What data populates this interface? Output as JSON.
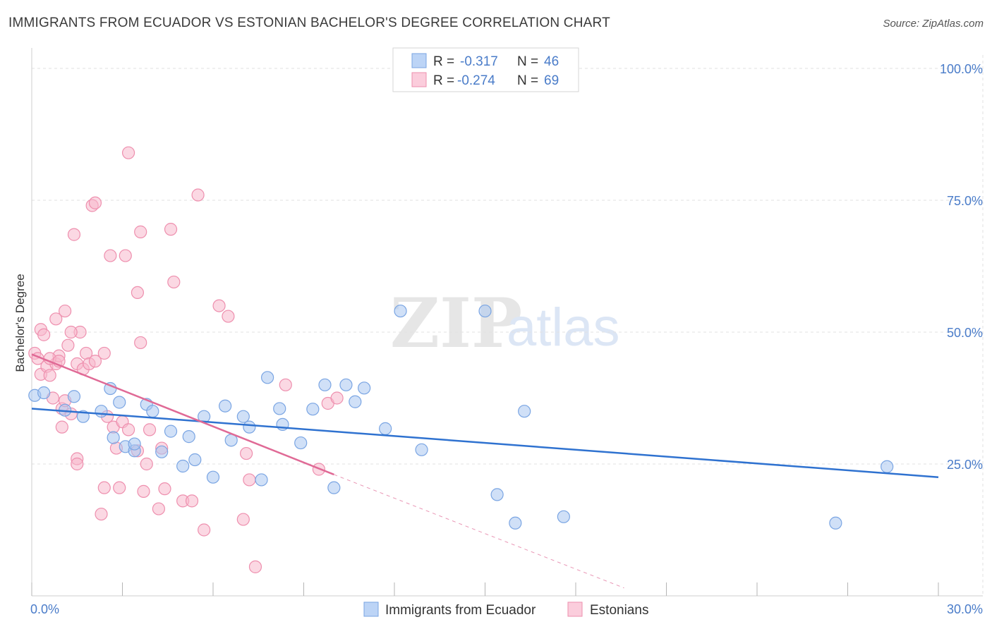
{
  "header": {
    "title": "IMMIGRANTS FROM ECUADOR VS ESTONIAN BACHELOR'S DEGREE CORRELATION CHART",
    "source": "Source: ZipAtlas.com"
  },
  "watermark": {
    "zip": "ZIP",
    "atlas": "atlas"
  },
  "legend": {
    "rows": [
      {
        "r_label": "R =",
        "r_value": "-0.317",
        "n_label": "N =",
        "n_value": "46"
      },
      {
        "r_label": "R =",
        "r_value": "-0.274",
        "n_label": "N =",
        "n_value": "69"
      }
    ]
  },
  "bottom_legend": {
    "items": [
      {
        "label": "Immigrants from Ecuador"
      },
      {
        "label": "Estonians"
      }
    ]
  },
  "colors": {
    "blue_fill": "#a9c6f0",
    "blue_stroke": "#7aa5e3",
    "blue_line": "#2f72d0",
    "pink_fill": "#f7b8cc",
    "pink_stroke": "#ee8fae",
    "pink_line": "#e06a96",
    "grid": "#e2e2e2",
    "tick_text": "#4a7cc9"
  },
  "chart_data": {
    "type": "scatter",
    "title": "IMMIGRANTS FROM ECUADOR VS ESTONIAN BACHELOR'S DEGREE CORRELATION CHART",
    "xlabel": "",
    "ylabel": "Bachelor's Degree",
    "xlim": [
      0,
      30
    ],
    "ylim": [
      0,
      100
    ],
    "x_tick_labels": [
      "0.0%",
      "30.0%"
    ],
    "y_ticks": [
      25,
      50,
      75,
      100
    ],
    "y_tick_labels": [
      "25.0%",
      "50.0%",
      "75.0%",
      "100.0%"
    ],
    "grid": true,
    "legend_position": "top-center",
    "series": [
      {
        "name": "Immigrants from Ecuador",
        "color": "blue",
        "r": -0.317,
        "n": 46,
        "trend": {
          "x": [
            0,
            30
          ],
          "y": [
            35.5,
            22.5
          ],
          "dashed_extension": false
        },
        "points": [
          [
            0.1,
            38.0
          ],
          [
            0.4,
            38.5
          ],
          [
            1.1,
            35.2
          ],
          [
            1.4,
            37.8
          ],
          [
            1.7,
            34.0
          ],
          [
            2.3,
            35.0
          ],
          [
            2.6,
            39.3
          ],
          [
            2.9,
            36.7
          ],
          [
            2.7,
            30.0
          ],
          [
            3.1,
            28.3
          ],
          [
            3.4,
            27.5
          ],
          [
            3.4,
            28.8
          ],
          [
            3.8,
            36.3
          ],
          [
            4.0,
            35.0
          ],
          [
            4.3,
            27.3
          ],
          [
            4.6,
            31.2
          ],
          [
            5.0,
            24.6
          ],
          [
            5.2,
            30.2
          ],
          [
            5.4,
            25.8
          ],
          [
            5.7,
            34.0
          ],
          [
            6.0,
            22.5
          ],
          [
            6.4,
            36.0
          ],
          [
            6.6,
            29.5
          ],
          [
            7.0,
            34.0
          ],
          [
            7.2,
            32.0
          ],
          [
            7.6,
            22.0
          ],
          [
            7.8,
            41.4
          ],
          [
            8.2,
            35.5
          ],
          [
            8.3,
            32.5
          ],
          [
            8.9,
            29.0
          ],
          [
            9.3,
            35.4
          ],
          [
            9.7,
            40.0
          ],
          [
            10.0,
            20.5
          ],
          [
            10.4,
            40.0
          ],
          [
            10.7,
            36.8
          ],
          [
            11.0,
            39.4
          ],
          [
            11.7,
            31.7
          ],
          [
            12.2,
            54.0
          ],
          [
            12.9,
            27.7
          ],
          [
            15.0,
            54.0
          ],
          [
            15.4,
            19.2
          ],
          [
            16.0,
            13.8
          ],
          [
            16.3,
            35.0
          ],
          [
            17.6,
            15.0
          ],
          [
            26.6,
            13.8
          ],
          [
            28.3,
            24.5
          ]
        ]
      },
      {
        "name": "Estonians",
        "color": "pink",
        "r": -0.274,
        "n": 69,
        "trend": {
          "x": [
            0,
            10
          ],
          "y": [
            45.8,
            23.0
          ],
          "dashed_extension": true,
          "dash_to": [
            19.6,
            1.5
          ]
        },
        "points": [
          [
            0.1,
            46.0
          ],
          [
            0.2,
            45.0
          ],
          [
            0.3,
            42.0
          ],
          [
            0.3,
            50.5
          ],
          [
            0.4,
            49.5
          ],
          [
            0.5,
            43.5
          ],
          [
            0.6,
            41.8
          ],
          [
            0.7,
            37.5
          ],
          [
            0.8,
            52.5
          ],
          [
            0.8,
            44.0
          ],
          [
            0.9,
            45.5
          ],
          [
            1.0,
            35.5
          ],
          [
            1.0,
            32.0
          ],
          [
            1.1,
            37.0
          ],
          [
            1.1,
            54.0
          ],
          [
            1.2,
            47.5
          ],
          [
            1.3,
            34.5
          ],
          [
            1.4,
            68.5
          ],
          [
            1.5,
            26.0
          ],
          [
            1.5,
            25.0
          ],
          [
            1.5,
            44.0
          ],
          [
            1.6,
            50.0
          ],
          [
            1.7,
            43.0
          ],
          [
            1.8,
            46.0
          ],
          [
            1.9,
            44.0
          ],
          [
            2.0,
            74.0
          ],
          [
            2.1,
            74.5
          ],
          [
            2.1,
            44.5
          ],
          [
            2.3,
            15.5
          ],
          [
            2.4,
            20.5
          ],
          [
            2.4,
            46.0
          ],
          [
            2.5,
            34.0
          ],
          [
            2.6,
            64.5
          ],
          [
            2.7,
            32.0
          ],
          [
            2.8,
            28.0
          ],
          [
            2.9,
            20.5
          ],
          [
            3.0,
            33.0
          ],
          [
            3.1,
            64.5
          ],
          [
            3.2,
            31.5
          ],
          [
            3.2,
            84.0
          ],
          [
            3.5,
            27.5
          ],
          [
            3.5,
            57.5
          ],
          [
            3.6,
            69.0
          ],
          [
            3.6,
            48.0
          ],
          [
            3.7,
            19.8
          ],
          [
            3.8,
            25.0
          ],
          [
            3.9,
            31.5
          ],
          [
            4.2,
            16.5
          ],
          [
            4.3,
            28.0
          ],
          [
            4.4,
            20.3
          ],
          [
            4.6,
            69.5
          ],
          [
            4.7,
            59.5
          ],
          [
            5.0,
            18.0
          ],
          [
            5.3,
            18.0
          ],
          [
            5.5,
            76.0
          ],
          [
            5.7,
            12.5
          ],
          [
            6.2,
            55.0
          ],
          [
            6.5,
            53.0
          ],
          [
            7.0,
            14.5
          ],
          [
            7.1,
            27.0
          ],
          [
            7.2,
            22.0
          ],
          [
            7.4,
            5.5
          ],
          [
            8.4,
            40.0
          ],
          [
            9.5,
            24.0
          ],
          [
            9.8,
            36.5
          ],
          [
            10.1,
            37.5
          ],
          [
            0.6,
            45.0
          ],
          [
            0.9,
            44.5
          ],
          [
            1.3,
            50.0
          ]
        ]
      }
    ]
  }
}
